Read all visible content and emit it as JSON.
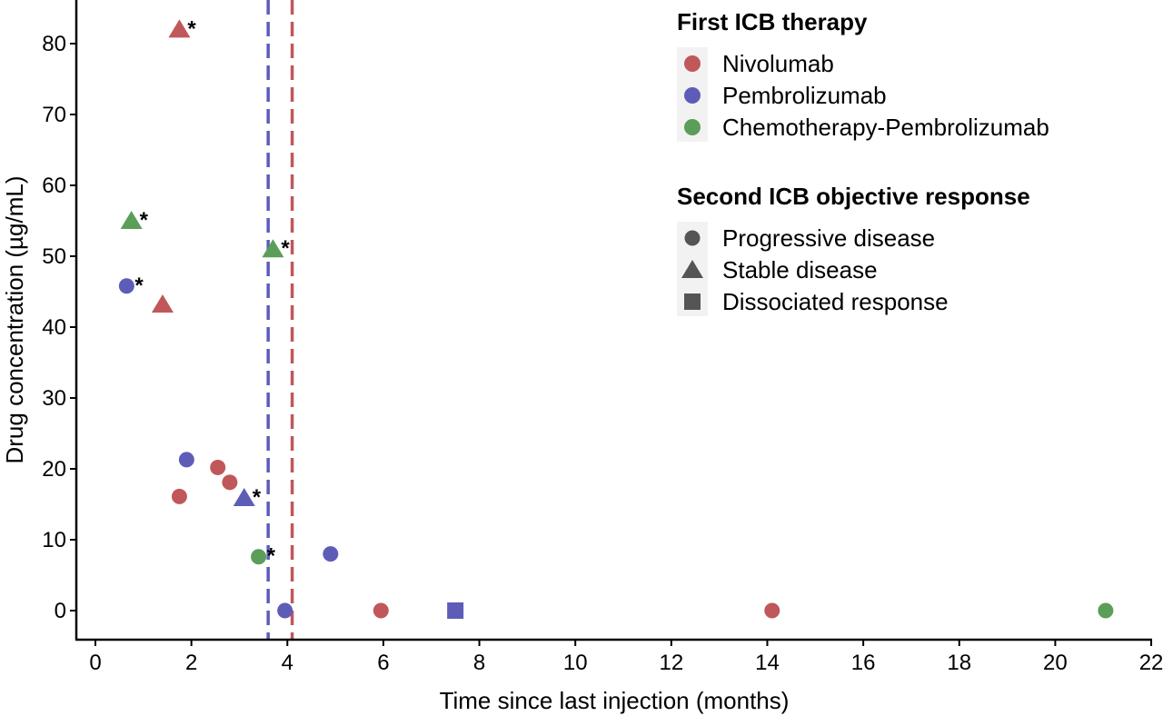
{
  "chart_data": {
    "type": "scatter",
    "xlabel": "Time since last injection (months)",
    "ylabel": "Drug concentration (µg/mL)",
    "xlim": [
      -0.4,
      22
    ],
    "ylim": [
      -4,
      86
    ],
    "xticks": [
      0,
      2,
      4,
      6,
      8,
      10,
      12,
      14,
      16,
      18,
      20,
      22
    ],
    "yticks": [
      0,
      10,
      20,
      30,
      40,
      50,
      60,
      70,
      80
    ],
    "grid": false,
    "legend_position": "top-right",
    "colors": {
      "Nivolumab": "#c0575a",
      "Pembrolizumab": "#5d5db8",
      "Chemotherapy-Pembrolizumab": "#5a9e5a"
    },
    "vlines": [
      {
        "x": 3.6,
        "color": "#5d5db8",
        "style": "dashed"
      },
      {
        "x": 4.1,
        "color": "#c0575a",
        "style": "dashed"
      }
    ],
    "legend": {
      "color_title": "First ICB therapy",
      "color_entries": [
        "Nivolumab",
        "Pembrolizumab",
        "Chemotherapy-Pembrolizumab"
      ],
      "shape_title": "Second ICB objective response",
      "shape_entries": [
        {
          "label": "Progressive disease",
          "shape": "circle"
        },
        {
          "label": "Stable disease",
          "shape": "triangle"
        },
        {
          "label": "Dissociated response",
          "shape": "square"
        }
      ]
    },
    "points": [
      {
        "x": 1.75,
        "y": 82.0,
        "therapy": "Nivolumab",
        "shape": "triangle",
        "label": "*"
      },
      {
        "x": 0.75,
        "y": 55.0,
        "therapy": "Chemotherapy-Pembrolizumab",
        "shape": "triangle",
        "label": "*"
      },
      {
        "x": 3.7,
        "y": 51.0,
        "therapy": "Chemotherapy-Pembrolizumab",
        "shape": "triangle",
        "label": "*"
      },
      {
        "x": 0.65,
        "y": 45.8,
        "therapy": "Pembrolizumab",
        "shape": "circle",
        "label": "*"
      },
      {
        "x": 1.4,
        "y": 43.2,
        "therapy": "Nivolumab",
        "shape": "triangle"
      },
      {
        "x": 1.9,
        "y": 21.3,
        "therapy": "Pembrolizumab",
        "shape": "circle"
      },
      {
        "x": 2.55,
        "y": 20.2,
        "therapy": "Nivolumab",
        "shape": "circle"
      },
      {
        "x": 2.8,
        "y": 18.1,
        "therapy": "Nivolumab",
        "shape": "circle"
      },
      {
        "x": 1.75,
        "y": 16.1,
        "therapy": "Nivolumab",
        "shape": "circle"
      },
      {
        "x": 3.1,
        "y": 15.9,
        "therapy": "Pembrolizumab",
        "shape": "triangle",
        "label": "*"
      },
      {
        "x": 3.4,
        "y": 7.6,
        "therapy": "Chemotherapy-Pembrolizumab",
        "shape": "circle",
        "label": "*"
      },
      {
        "x": 4.9,
        "y": 8.0,
        "therapy": "Pembrolizumab",
        "shape": "circle"
      },
      {
        "x": 3.95,
        "y": 0.0,
        "therapy": "Pembrolizumab",
        "shape": "circle"
      },
      {
        "x": 5.95,
        "y": 0.0,
        "therapy": "Nivolumab",
        "shape": "circle"
      },
      {
        "x": 7.5,
        "y": 0.0,
        "therapy": "Pembrolizumab",
        "shape": "square"
      },
      {
        "x": 14.1,
        "y": 0.0,
        "therapy": "Nivolumab",
        "shape": "circle"
      },
      {
        "x": 21.05,
        "y": 0.0,
        "therapy": "Chemotherapy-Pembrolizumab",
        "shape": "circle"
      }
    ]
  }
}
